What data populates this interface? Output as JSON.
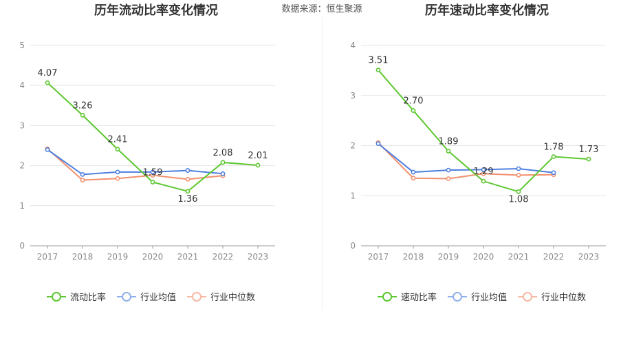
{
  "source": "数据来源：恒生聚源",
  "colors": {
    "main": "#5cc72f",
    "avg": "#4e7fe0",
    "median": "#f2906d",
    "avg_legend": "#8fb0ea",
    "median_legend": "#f5b8a2"
  },
  "chart_data": [
    {
      "type": "line",
      "title": "历年流动比率变化情况",
      "categories": [
        "2017",
        "2018",
        "2019",
        "2020",
        "2021",
        "2022",
        "2023"
      ],
      "ylim": [
        0,
        5
      ],
      "yticks": [
        "0",
        "1",
        "2",
        "3",
        "4",
        "5"
      ],
      "grid": true,
      "legend": "bottom-center",
      "series": [
        {
          "name": "流动比率",
          "values": [
            4.07,
            3.26,
            2.41,
            1.59,
            1.36,
            2.08,
            2.01
          ],
          "labels": [
            "4.07",
            "3.26",
            "2.41",
            "1.59",
            "1.36",
            "2.08",
            "2.01"
          ]
        },
        {
          "name": "行业均值",
          "values": [
            2.4,
            1.78,
            1.84,
            1.84,
            1.88,
            1.8,
            null
          ]
        },
        {
          "name": "行业中位数",
          "values": [
            2.42,
            1.64,
            1.68,
            1.76,
            1.66,
            1.75,
            null
          ]
        }
      ]
    },
    {
      "type": "line",
      "title": "历年速动比率变化情况",
      "categories": [
        "2017",
        "2018",
        "2019",
        "2020",
        "2021",
        "2022",
        "2023"
      ],
      "ylim": [
        0,
        4
      ],
      "yticks": [
        "0",
        "1",
        "2",
        "3",
        "4"
      ],
      "grid": true,
      "legend": "bottom-center",
      "series": [
        {
          "name": "速动比率",
          "values": [
            3.51,
            2.7,
            1.89,
            1.29,
            1.08,
            1.78,
            1.73
          ],
          "labels": [
            "3.51",
            "2.70",
            "1.89",
            "1.29",
            "1.08",
            "1.78",
            "1.73"
          ]
        },
        {
          "name": "行业均值",
          "values": [
            2.04,
            1.47,
            1.51,
            1.52,
            1.54,
            1.46,
            null
          ]
        },
        {
          "name": "行业中位数",
          "values": [
            2.06,
            1.35,
            1.34,
            1.44,
            1.41,
            1.42,
            null
          ]
        }
      ]
    }
  ]
}
